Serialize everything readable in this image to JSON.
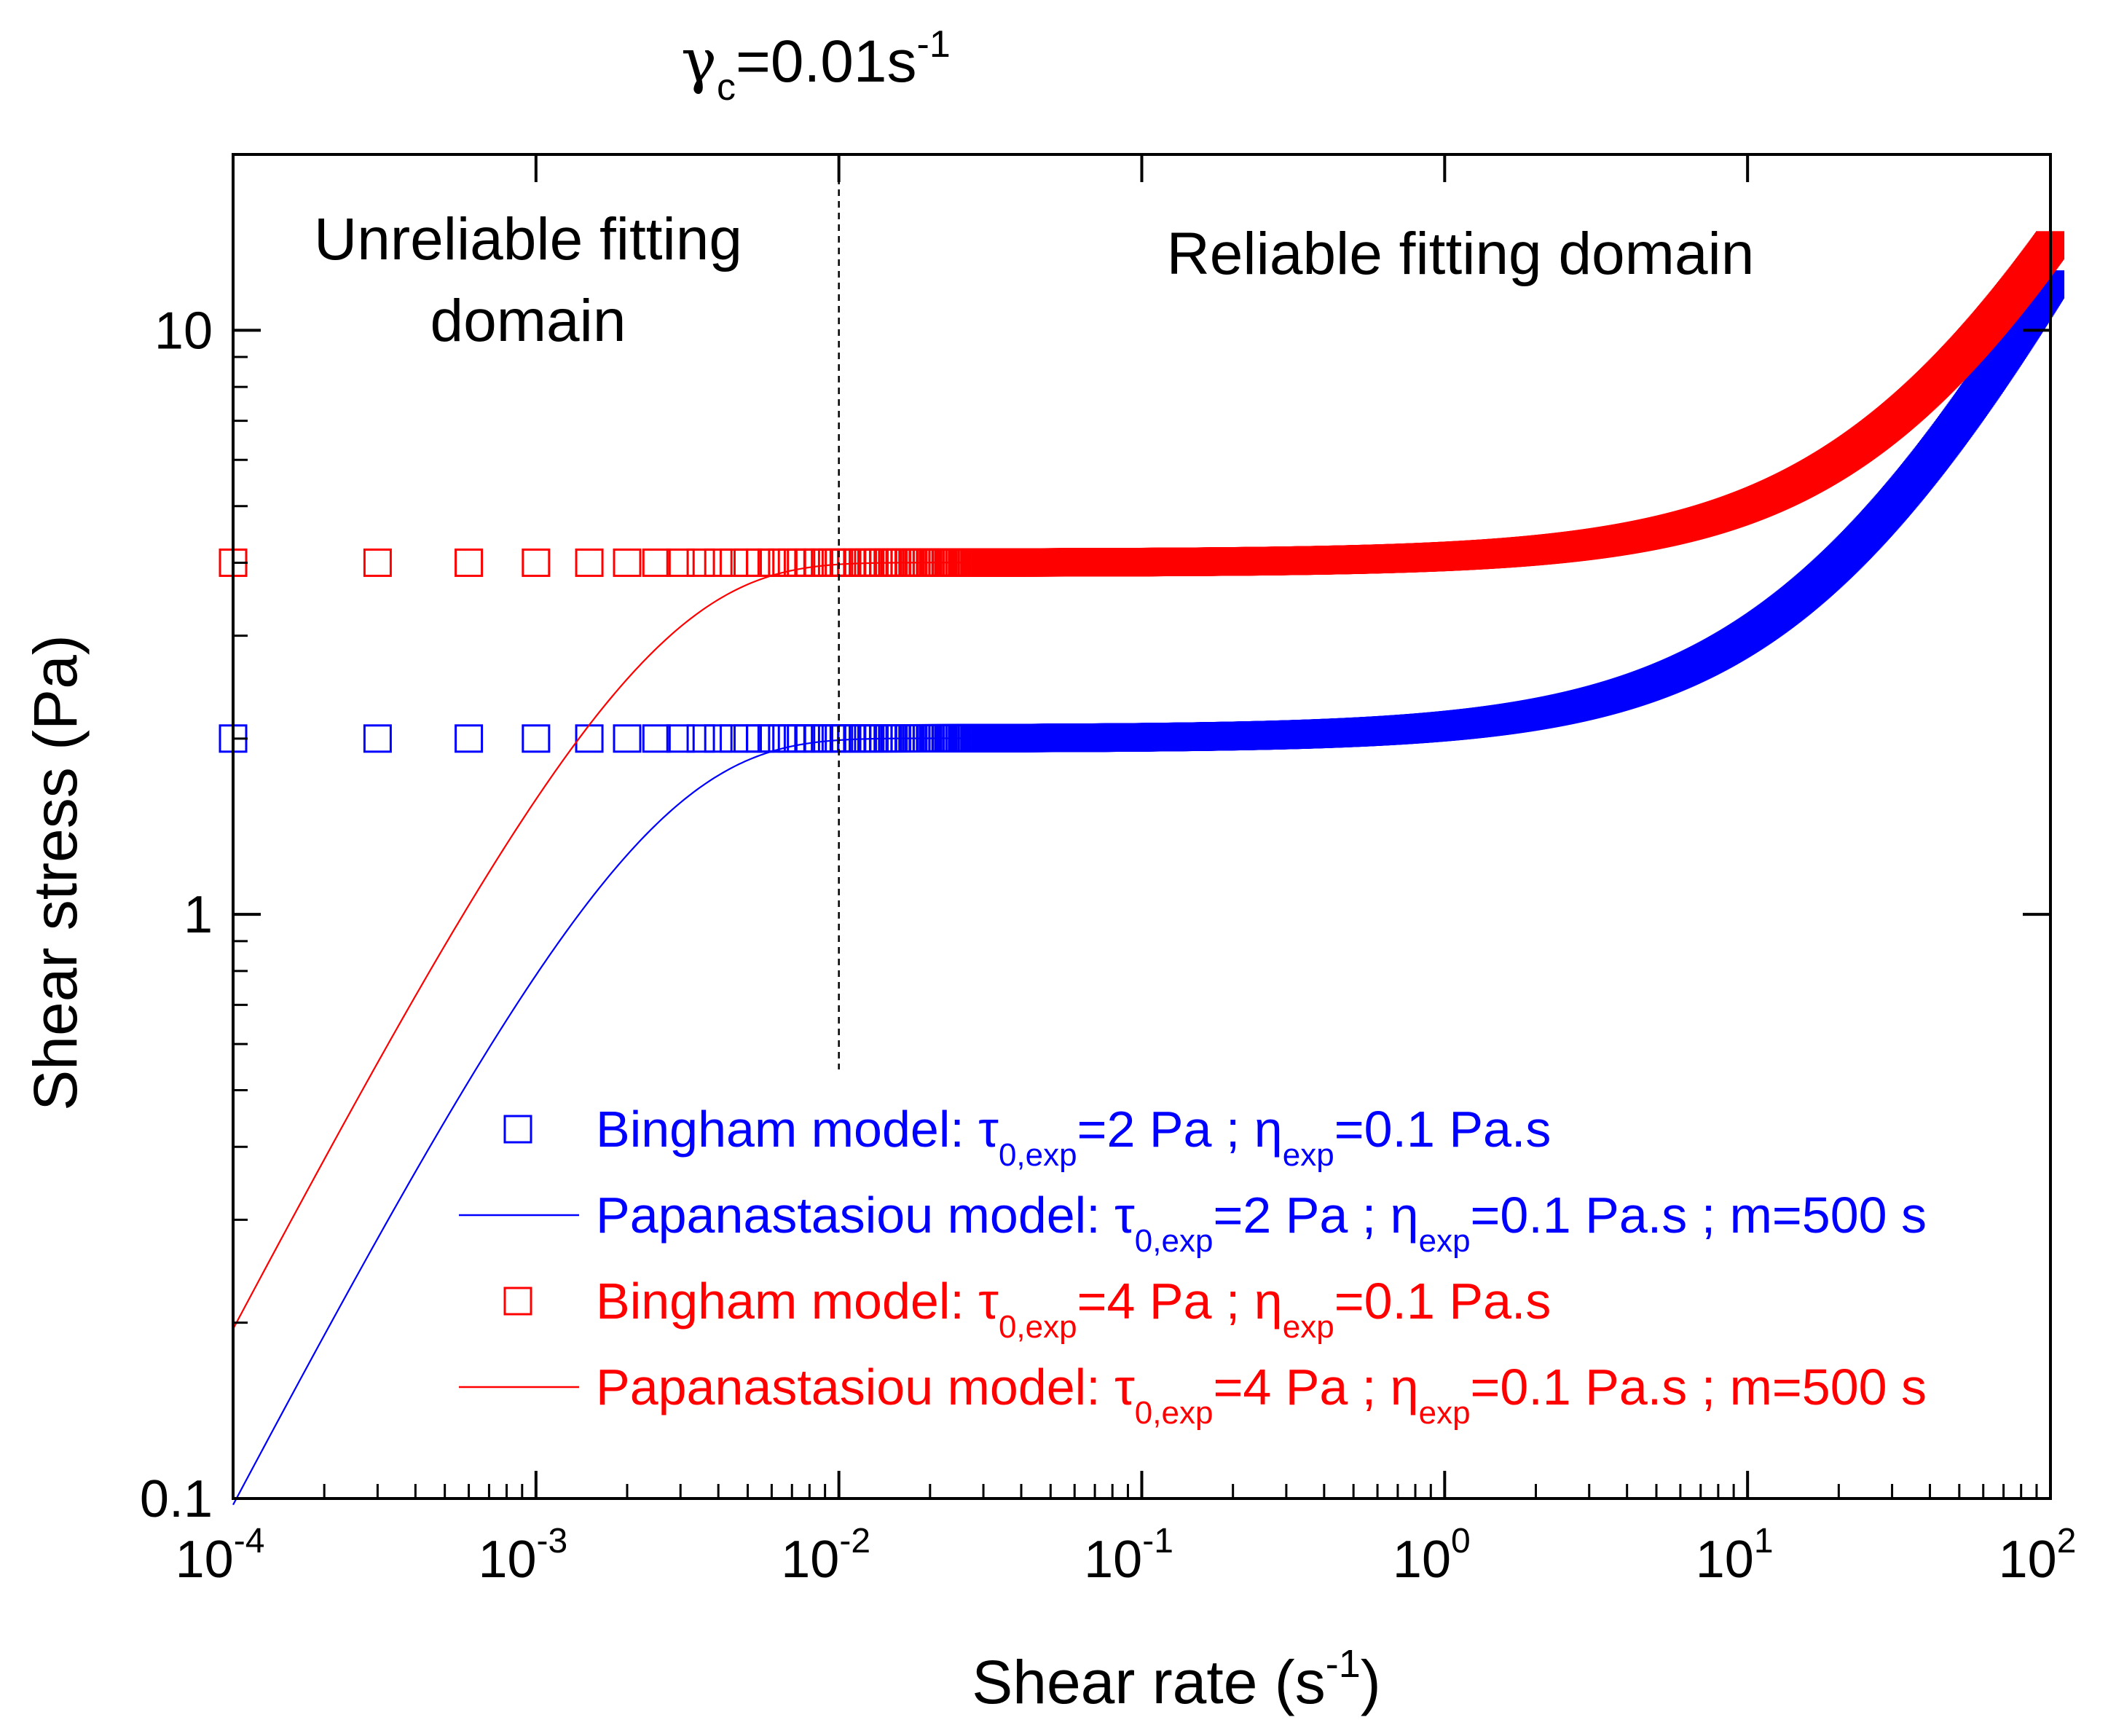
{
  "chart_data": {
    "type": "scatter",
    "title": "",
    "xlabel": "Shear rate (s⁻¹)",
    "xlabel_parts": {
      "main": "Shear rate (s",
      "sup": "-1",
      "close": ")"
    },
    "ylabel": "Shear stress (Pa)",
    "xscale": "log",
    "yscale": "log",
    "xlim": [
      0.0001,
      100
    ],
    "ylim": [
      0.1,
      20
    ],
    "x_ticks": [
      {
        "base": "10",
        "exp": "-4"
      },
      {
        "base": "10",
        "exp": "-3"
      },
      {
        "base": "10",
        "exp": "-2"
      },
      {
        "base": "10",
        "exp": "-1"
      },
      {
        "base": "10",
        "exp": "0"
      },
      {
        "base": "10",
        "exp": "1"
      },
      {
        "base": "10",
        "exp": "2"
      }
    ],
    "y_ticks": [
      "0.1",
      "1",
      "10"
    ],
    "grid": false,
    "critical_line": {
      "x": 0.01,
      "label_symbol": "γ",
      "label_sub": "c",
      "label_value": "=0.01s",
      "label_sup": "-1"
    },
    "annotations": [
      {
        "name": "unreliable-domain",
        "lines": [
          "Unreliable fitting",
          "domain"
        ]
      },
      {
        "name": "reliable-domain",
        "lines": [
          "Reliable fitting domain"
        ]
      }
    ],
    "series": [
      {
        "name": "Bingham model: τ0,exp=2 Pa ; ηexp=0.1 Pa.s",
        "kind": "markers",
        "color": "#0000ff",
        "tau0": 2,
        "eta": 0.1,
        "legend_parts": [
          {
            "t": "Bingham model: τ"
          },
          {
            "t": "0,exp",
            "sub": true
          },
          {
            "t": "=2 Pa ; η"
          },
          {
            "t": "exp",
            "sub": true
          },
          {
            "t": "=0.1 Pa.s"
          }
        ]
      },
      {
        "name": "Papanastasiou model: τ0,exp=2 Pa ; ηexp=0.1 Pa.s ; m=500 s",
        "kind": "line",
        "color": "#0000ff",
        "tau0": 2,
        "eta": 0.1,
        "m": 500,
        "legend_parts": [
          {
            "t": "Papanastasiou model: τ"
          },
          {
            "t": "0,exp",
            "sub": true
          },
          {
            "t": "=2 Pa ; η"
          },
          {
            "t": "exp",
            "sub": true
          },
          {
            "t": "=0.1 Pa.s ; m=500 s"
          }
        ]
      },
      {
        "name": "Bingham model: τ0,exp=4 Pa ; ηexp=0.1 Pa.s",
        "kind": "markers",
        "color": "#ff0000",
        "tau0": 4,
        "eta": 0.1,
        "legend_parts": [
          {
            "t": "Bingham model: τ"
          },
          {
            "t": "0,exp",
            "sub": true
          },
          {
            "t": "=4 Pa ; η"
          },
          {
            "t": "exp",
            "sub": true
          },
          {
            "t": "=0.1 Pa.s"
          }
        ]
      },
      {
        "name": "Papanastasiou model: τ0,exp=4 Pa ; ηexp=0.1 Pa.s ; m=500 s",
        "kind": "line",
        "color": "#ff0000",
        "tau0": 4,
        "eta": 0.1,
        "m": 500,
        "legend_parts": [
          {
            "t": "Papanastasiou model: τ"
          },
          {
            "t": "0,exp",
            "sub": true
          },
          {
            "t": "=4 Pa ; η"
          },
          {
            "t": "exp",
            "sub": true
          },
          {
            "t": "=0.1 Pa.s ; m=500 s"
          }
        ]
      }
    ],
    "marker_shear_rates": [
      0.0001,
      0.0003,
      0.0006,
      0.001,
      0.0015,
      0.002,
      0.0025,
      0.003,
      0.0035,
      0.004,
      0.0045,
      0.005,
      0.0055,
      0.006,
      0.0065,
      0.007,
      0.0075,
      0.008,
      0.0085,
      0.009,
      0.0095,
      0.01,
      0.0105,
      0.011,
      0.0115,
      0.012,
      0.0125,
      0.013,
      0.0135,
      0.014,
      0.0145,
      0.015,
      0.0155,
      0.016,
      0.0165,
      0.017,
      0.0175,
      0.018,
      0.0185,
      0.019,
      0.0195,
      0.02,
      0.0205,
      0.021,
      0.0215,
      0.022,
      0.0225,
      0.023,
      0.0235,
      0.024,
      0.0245,
      0.025,
      0.0255,
      0.026,
      0.0265,
      0.027,
      0.0275,
      0.028,
      0.0285,
      0.029,
      0.0295,
      0.03,
      0.0305,
      0.031,
      0.0315,
      0.032,
      0.0325,
      0.033,
      0.0335,
      0.034,
      0.0345,
      0.035,
      0.0355,
      0.036,
      0.0365,
      0.037,
      0.0375,
      0.038,
      0.0385,
      0.039,
      0.0395,
      0.04,
      0.0405,
      0.041,
      0.0415,
      0.042,
      0.0425,
      0.043,
      0.0435,
      0.044,
      0.0445,
      0.045,
      0.0455,
      0.046,
      0.0465,
      0.047,
      0.0475,
      0.048,
      0.0485,
      0.049,
      0.0495,
      0.05
    ]
  }
}
